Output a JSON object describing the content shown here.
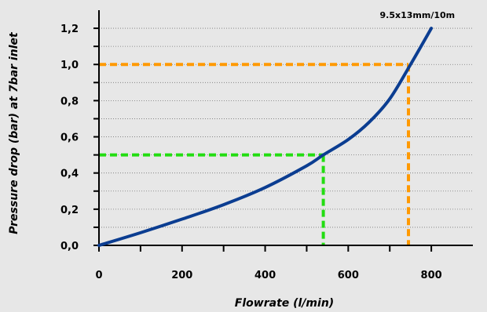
{
  "chart_data": {
    "type": "line",
    "title": "",
    "xlabel": "Flowrate (l/min)",
    "ylabel": "Pressure drop (bar) at 7bar inlet",
    "xlim": [
      0,
      900
    ],
    "ylim": [
      0,
      1.3
    ],
    "x_ticks": [
      0,
      100,
      200,
      300,
      400,
      500,
      600,
      700,
      800
    ],
    "x_tick_labels": [
      "0",
      "",
      "200",
      "",
      "400",
      "",
      "600",
      "",
      "800"
    ],
    "y_ticks": [
      0,
      0.1,
      0.2,
      0.3,
      0.4,
      0.5,
      0.6,
      0.7,
      0.8,
      0.9,
      1.0,
      1.1,
      1.2
    ],
    "y_tick_labels": [
      "0,0",
      "",
      "0,2",
      "",
      "0,4",
      "",
      "0,6",
      "",
      "0,8",
      "",
      "1,0",
      "",
      "1,2"
    ],
    "grid": "horizontal dotted",
    "series": [
      {
        "name": "9.5x13mm/10m",
        "color": "#0b3d91",
        "x": [
          0,
          100,
          200,
          300,
          400,
          500,
          540,
          600,
          650,
          700,
          750,
          800
        ],
        "y": [
          0,
          0.07,
          0.145,
          0.225,
          0.32,
          0.44,
          0.5,
          0.585,
          0.68,
          0.81,
          1.0,
          1.2
        ]
      }
    ],
    "reference_lines": [
      {
        "x": 540,
        "y": 0.5,
        "color": "#22dd11"
      },
      {
        "x": 745,
        "y": 1.0,
        "color": "#ff9900"
      }
    ]
  }
}
